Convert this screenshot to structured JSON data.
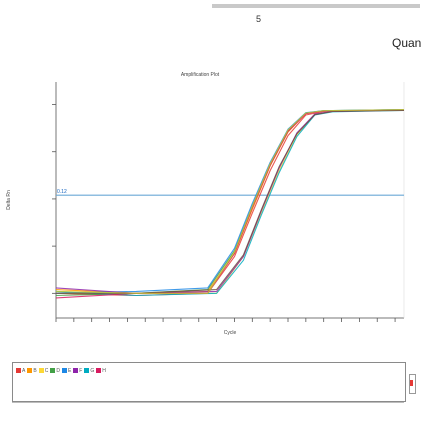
{
  "header": {
    "number": "5",
    "title": "Quan"
  },
  "chart_data": {
    "type": "line",
    "title": "Amplification Plot",
    "xlabel": "Cycle",
    "ylabel": "Delta Rn",
    "yscale": "log",
    "ylim": [
      0.0003,
      30
    ],
    "xlim": [
      1,
      40
    ],
    "threshold": 0.12,
    "threshold_label": "0.12",
    "grid": false,
    "series": [
      {
        "color": "#e53935",
        "x": [
          1,
          10,
          18,
          21,
          23,
          25,
          27,
          29,
          31,
          40
        ],
        "y": [
          0.001,
          0.0009,
          0.001,
          0.006,
          0.05,
          0.4,
          2.2,
          6,
          7.1,
          7.6
        ]
      },
      {
        "color": "#ff9800",
        "x": [
          1,
          10,
          18,
          21,
          23,
          25,
          27,
          29,
          31,
          40
        ],
        "y": [
          0.0012,
          0.001,
          0.0011,
          0.007,
          0.06,
          0.5,
          2.6,
          6.5,
          7.3,
          7.7
        ]
      },
      {
        "color": "#fdd835",
        "x": [
          1,
          10,
          19,
          22,
          24,
          26,
          28,
          30,
          32,
          40
        ],
        "y": [
          0.001,
          0.001,
          0.001,
          0.006,
          0.05,
          0.4,
          2.3,
          6.2,
          7.2,
          7.6
        ]
      },
      {
        "color": "#43a047",
        "x": [
          1,
          10,
          18,
          21,
          23,
          25,
          27,
          29,
          31,
          40
        ],
        "y": [
          0.0009,
          0.001,
          0.0012,
          0.008,
          0.07,
          0.55,
          2.8,
          6.6,
          7.4,
          7.8
        ]
      },
      {
        "color": "#00acc1",
        "x": [
          1,
          10,
          19,
          22,
          24,
          26,
          28,
          30,
          32,
          40
        ],
        "y": [
          0.0011,
          0.0009,
          0.001,
          0.005,
          0.045,
          0.36,
          2.1,
          6.0,
          7.0,
          7.5
        ]
      },
      {
        "color": "#1e88e5",
        "x": [
          1,
          10,
          18,
          21,
          23,
          25,
          27,
          29,
          31,
          40
        ],
        "y": [
          0.001,
          0.0011,
          0.0013,
          0.009,
          0.08,
          0.6,
          3.0,
          6.7,
          7.4,
          7.8
        ]
      },
      {
        "color": "#8e24aa",
        "x": [
          1,
          10,
          19,
          22,
          24,
          26,
          28,
          30,
          32,
          40
        ],
        "y": [
          0.0013,
          0.001,
          0.0011,
          0.006,
          0.055,
          0.45,
          2.5,
          6.3,
          7.2,
          7.6
        ]
      },
      {
        "color": "#d81b60",
        "x": [
          1,
          10,
          18,
          21,
          23,
          25,
          27,
          29,
          31,
          40
        ],
        "y": [
          0.0008,
          0.001,
          0.001,
          0.007,
          0.065,
          0.52,
          2.7,
          6.4,
          7.3,
          7.7
        ]
      },
      {
        "color": "#6d4c41",
        "x": [
          1,
          10,
          19,
          22,
          24,
          26,
          28,
          30,
          32,
          40
        ],
        "y": [
          0.001,
          0.001,
          0.0012,
          0.0065,
          0.058,
          0.48,
          2.4,
          6.1,
          7.1,
          7.5
        ]
      },
      {
        "color": "#c0ca33",
        "x": [
          1,
          10,
          18,
          21,
          23,
          25,
          27,
          29,
          31,
          40
        ],
        "y": [
          0.0011,
          0.001,
          0.001,
          0.0075,
          0.07,
          0.56,
          2.9,
          6.6,
          7.4,
          7.8
        ]
      }
    ]
  },
  "legend": {
    "items": [
      {
        "label": "A",
        "color": "#e53935"
      },
      {
        "label": "B",
        "color": "#ff9800"
      },
      {
        "label": "C",
        "color": "#fdd835"
      },
      {
        "label": "D",
        "color": "#43a047"
      },
      {
        "label": "E",
        "color": "#1e88e5"
      },
      {
        "label": "F",
        "color": "#8e24aa"
      },
      {
        "label": "G",
        "color": "#00acc1"
      },
      {
        "label": "H",
        "color": "#d81b60"
      }
    ]
  }
}
